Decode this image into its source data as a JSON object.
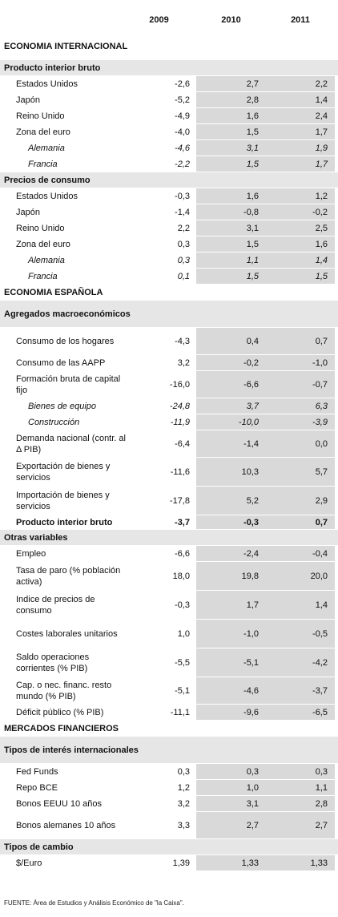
{
  "header": {
    "years": [
      "2009",
      "2010",
      "2011"
    ]
  },
  "rows": [
    {
      "kind": "section",
      "label": "ECONOMIA INTERNACIONAL",
      "h": 32
    },
    {
      "kind": "group",
      "label": "Producto interior bruto",
      "h": 20
    },
    {
      "kind": "item",
      "label": "Estados Unidos",
      "v": [
        "-2,6",
        "2,7",
        "2,2"
      ],
      "h": 20
    },
    {
      "kind": "item",
      "label": "Japón",
      "v": [
        "-5,2",
        "2,8",
        "1,4"
      ],
      "h": 20
    },
    {
      "kind": "item",
      "label": "Reino Unido",
      "v": [
        "-4,9",
        "1,6",
        "2,4"
      ],
      "h": 20
    },
    {
      "kind": "item",
      "label": "Zona del euro",
      "v": [
        "-4,0",
        "1,5",
        "1,7"
      ],
      "h": 20
    },
    {
      "kind": "sub",
      "label": "Alemania",
      "v": [
        "-4,6",
        "3,1",
        "1,9"
      ],
      "h": 20
    },
    {
      "kind": "sub",
      "label": "Francia",
      "v": [
        "-2,2",
        "1,5",
        "1,7"
      ],
      "h": 20
    },
    {
      "kind": "group",
      "label": "Precios de consumo",
      "h": 20
    },
    {
      "kind": "item",
      "label": "Estados Unidos",
      "v": [
        "-0,3",
        "1,6",
        "1,2"
      ],
      "h": 20
    },
    {
      "kind": "item",
      "label": "Japón",
      "v": [
        "-1,4",
        "-0,8",
        "-0,2"
      ],
      "h": 20
    },
    {
      "kind": "item",
      "label": "Reino Unido",
      "v": [
        "2,2",
        "3,1",
        "2,5"
      ],
      "h": 20
    },
    {
      "kind": "item",
      "label": "Zona del euro",
      "v": [
        "0,3",
        "1,5",
        "1,6"
      ],
      "h": 20
    },
    {
      "kind": "sub",
      "label": "Alemania",
      "v": [
        "0,3",
        "1,1",
        "1,4"
      ],
      "h": 20
    },
    {
      "kind": "sub",
      "label": "Francia",
      "v": [
        "0,1",
        "1,5",
        "1,5"
      ],
      "h": 20
    },
    {
      "kind": "section",
      "label": "ECONOMIA ESPAÑOLA",
      "h": 20
    },
    {
      "kind": "group",
      "label": "Agregados macroeconómicos",
      "h": 34
    },
    {
      "kind": "item",
      "label": "Consumo de los hogares",
      "v": [
        "-4,3",
        "0,4",
        "0,7"
      ],
      "h": 34
    },
    {
      "kind": "item",
      "label": "Consumo de las AAPP",
      "v": [
        "3,2",
        "-0,2",
        "-1,0"
      ],
      "h": 20
    },
    {
      "kind": "item",
      "label": "Formación bruta de capital fijo",
      "v": [
        "-16,0",
        "-6,6",
        "-0,7"
      ],
      "h": 34
    },
    {
      "kind": "sub",
      "label": "Bienes de equipo",
      "v": [
        "-24,8",
        "3,7",
        "6,3"
      ],
      "h": 20
    },
    {
      "kind": "sub",
      "label": "Construcción",
      "v": [
        "-11,9",
        "-10,0",
        "-3,9"
      ],
      "h": 20
    },
    {
      "kind": "item",
      "label": "Demanda nacional (contr. al Δ PIB)",
      "v": [
        "-6,4",
        "-1,4",
        "0,0"
      ],
      "h": 34
    },
    {
      "kind": "item",
      "label": "Exportación de bienes y servicios",
      "v": [
        "-11,6",
        "10,3",
        "5,7"
      ],
      "h": 36
    },
    {
      "kind": "item",
      "label": "Importación de bienes y servicios",
      "v": [
        "-17,8",
        "5,2",
        "2,9"
      ],
      "h": 36
    },
    {
      "kind": "item",
      "bold": true,
      "label": "Producto interior bruto",
      "v": [
        "-3,7",
        "-0,3",
        "0,7"
      ],
      "h": 18
    },
    {
      "kind": "group",
      "label": "Otras variables",
      "h": 20
    },
    {
      "kind": "item",
      "label": "Empleo",
      "v": [
        "-6,6",
        "-2,4",
        "-0,4"
      ],
      "h": 20
    },
    {
      "kind": "item",
      "label": "Tasa de paro (% población activa)",
      "v": [
        "18,0",
        "19,8",
        "20,0"
      ],
      "h": 36
    },
    {
      "kind": "item",
      "label": "Indice de precios de consumo",
      "v": [
        "-0,3",
        "1,7",
        "1,4"
      ],
      "h": 36
    },
    {
      "kind": "item",
      "label": "Costes laborales unitarios",
      "v": [
        "1,0",
        "-1,0",
        "-0,5"
      ],
      "h": 36
    },
    {
      "kind": "item",
      "label": "Saldo operaciones corrientes (% PIB)",
      "v": [
        "-5,5",
        "-5,1",
        "-4,2"
      ],
      "h": 36
    },
    {
      "kind": "item",
      "label": "Cap. o nec. financ. resto mundo (% PIB)",
      "v": [
        "-5,1",
        "-4,6",
        "-3,7"
      ],
      "h": 34
    },
    {
      "kind": "item",
      "label": "Déficit público (% PIB)",
      "v": [
        "-11,1",
        "-9,6",
        "-6,5"
      ],
      "h": 20
    },
    {
      "kind": "section",
      "label": "MERCADOS FINANCIEROS",
      "h": 20
    },
    {
      "kind": "group",
      "label": "Tipos de interés internacionales",
      "h": 34
    },
    {
      "kind": "item",
      "label": "Fed Funds",
      "v": [
        "0,3",
        "0,3",
        "0,3"
      ],
      "h": 20
    },
    {
      "kind": "item",
      "label": "Repo BCE",
      "v": [
        "1,2",
        "1,0",
        "1,1"
      ],
      "h": 20
    },
    {
      "kind": "item",
      "label": "Bonos EEUU 10 años",
      "v": [
        "3,2",
        "3,1",
        "2,8"
      ],
      "h": 20
    },
    {
      "kind": "item",
      "label": "Bonos alemanes 10 años",
      "v": [
        "3,3",
        "2,7",
        "2,7"
      ],
      "h": 34
    },
    {
      "kind": "group",
      "label": "Tipos de cambio",
      "h": 20
    },
    {
      "kind": "item",
      "label": "$/Euro",
      "v": [
        "1,39",
        "1,33",
        "1,33"
      ],
      "h": 20
    }
  ],
  "footer": "FUENTE: Área de Estudios y Análisis Económico de \"la Caixa\"."
}
